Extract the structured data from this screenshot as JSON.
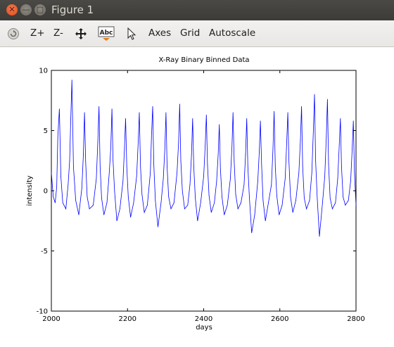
{
  "window": {
    "title": "Figure 1",
    "close_glyph": "✕",
    "minimize_glyph": "—",
    "maximize_glyph": "□"
  },
  "toolbar": {
    "rotate_icon": "rotate-icon",
    "zoom_in_label": "Z+",
    "zoom_out_label": "Z-",
    "pan_icon": "pan-icon",
    "text_icon_label": "Abc",
    "select_icon": "pointer-icon",
    "axes_label": "Axes",
    "grid_label": "Grid",
    "autoscale_label": "Autoscale"
  },
  "colors": {
    "line": "#0000ff",
    "titlebar": "#3c3b37",
    "toolbar": "#eeedeb"
  },
  "chart_data": {
    "type": "line",
    "title": "X-Ray Binary Binned Data",
    "xlabel": "days",
    "ylabel": "intensity",
    "xlim": [
      2000,
      2800
    ],
    "ylim": [
      -10,
      10
    ],
    "xticks": [
      "2000",
      "2200",
      "2400",
      "2600",
      "2800"
    ],
    "yticks": [
      "10",
      "5",
      "0",
      "-5",
      "-10"
    ],
    "grid": false,
    "series": [
      {
        "color": "#0000ff",
        "style": "thin line, approx. 800 daily samples, noisy around 0 with periodic outburst peaks",
        "x": [
          2000,
          2005,
          2010,
          2014,
          2017,
          2021,
          2025,
          2030,
          2038,
          2044,
          2048,
          2051,
          2054,
          2058,
          2064,
          2072,
          2080,
          2084,
          2087,
          2090,
          2094,
          2100,
          2110,
          2118,
          2122,
          2125,
          2128,
          2132,
          2138,
          2146,
          2152,
          2156,
          2159,
          2162,
          2166,
          2172,
          2180,
          2188,
          2192,
          2195,
          2198,
          2202,
          2208,
          2216,
          2224,
          2228,
          2231,
          2234,
          2238,
          2244,
          2252,
          2260,
          2263,
          2266,
          2269,
          2273,
          2280,
          2288,
          2294,
          2298,
          2301,
          2304,
          2308,
          2314,
          2322,
          2330,
          2334,
          2337,
          2340,
          2344,
          2350,
          2358,
          2364,
          2368,
          2371,
          2374,
          2378,
          2384,
          2392,
          2400,
          2404,
          2407,
          2410,
          2414,
          2420,
          2428,
          2434,
          2438,
          2441,
          2444,
          2448,
          2454,
          2462,
          2470,
          2474,
          2477,
          2480,
          2484,
          2490,
          2498,
          2506,
          2510,
          2513,
          2516,
          2520,
          2526,
          2534,
          2542,
          2546,
          2549,
          2552,
          2556,
          2562,
          2570,
          2578,
          2582,
          2585,
          2588,
          2592,
          2598,
          2606,
          2614,
          2618,
          2621,
          2624,
          2628,
          2634,
          2642,
          2650,
          2654,
          2657,
          2660,
          2664,
          2670,
          2678,
          2684,
          2688,
          2691,
          2694,
          2698,
          2704,
          2712,
          2718,
          2722,
          2725,
          2728,
          2732,
          2738,
          2746,
          2752,
          2756,
          2759,
          2762,
          2766,
          2772,
          2780,
          2786,
          2790,
          2793,
          2796,
          2800
        ],
        "y": [
          1.5,
          -0.5,
          -1.0,
          0.3,
          4.5,
          6.8,
          1.2,
          -1.0,
          -1.5,
          0.5,
          2.5,
          6.0,
          9.2,
          2.0,
          -0.8,
          -2.0,
          0.2,
          3.0,
          6.5,
          2.5,
          -0.5,
          -1.5,
          -1.2,
          1.0,
          4.0,
          7.0,
          2.0,
          -0.6,
          -2.0,
          -1.0,
          1.5,
          3.5,
          6.8,
          2.5,
          0.0,
          -2.5,
          -1.5,
          0.8,
          3.5,
          6.0,
          2.0,
          -0.5,
          -2.2,
          -1.0,
          1.2,
          4.0,
          6.5,
          2.0,
          -0.3,
          -1.8,
          -1.2,
          1.5,
          4.5,
          7.0,
          2.2,
          -0.8,
          -3.0,
          -1.0,
          1.0,
          3.5,
          6.5,
          2.0,
          -0.5,
          -1.5,
          -1.0,
          1.5,
          4.0,
          7.2,
          2.5,
          0.0,
          -1.5,
          -1.2,
          0.5,
          3.0,
          6.0,
          2.0,
          -0.6,
          -2.5,
          -1.0,
          1.2,
          3.8,
          6.3,
          2.2,
          -0.4,
          -1.8,
          -1.0,
          0.8,
          3.0,
          5.5,
          1.8,
          -0.5,
          -2.0,
          -1.2,
          1.0,
          3.5,
          6.5,
          2.5,
          -0.3,
          -1.5,
          -1.0,
          0.5,
          3.0,
          6.0,
          2.0,
          -0.5,
          -3.5,
          -2.0,
          0.8,
          3.2,
          5.8,
          2.2,
          -0.8,
          -2.5,
          -1.0,
          0.5,
          3.5,
          6.6,
          2.0,
          -0.4,
          -2.0,
          -1.2,
          1.0,
          4.0,
          6.5,
          2.4,
          -0.5,
          -1.8,
          -0.8,
          1.5,
          4.2,
          7.0,
          2.0,
          -0.6,
          -1.5,
          -0.8,
          1.5,
          5.0,
          8.0,
          2.5,
          -0.5,
          -3.8,
          -1.0,
          1.2,
          4.5,
          7.6,
          2.2,
          -0.6,
          -1.5,
          -1.0,
          1.0,
          3.8,
          6.0,
          2.0,
          -0.5,
          -1.2,
          -0.8,
          0.8,
          3.5,
          5.8,
          1.5,
          -1.2
        ]
      }
    ]
  }
}
